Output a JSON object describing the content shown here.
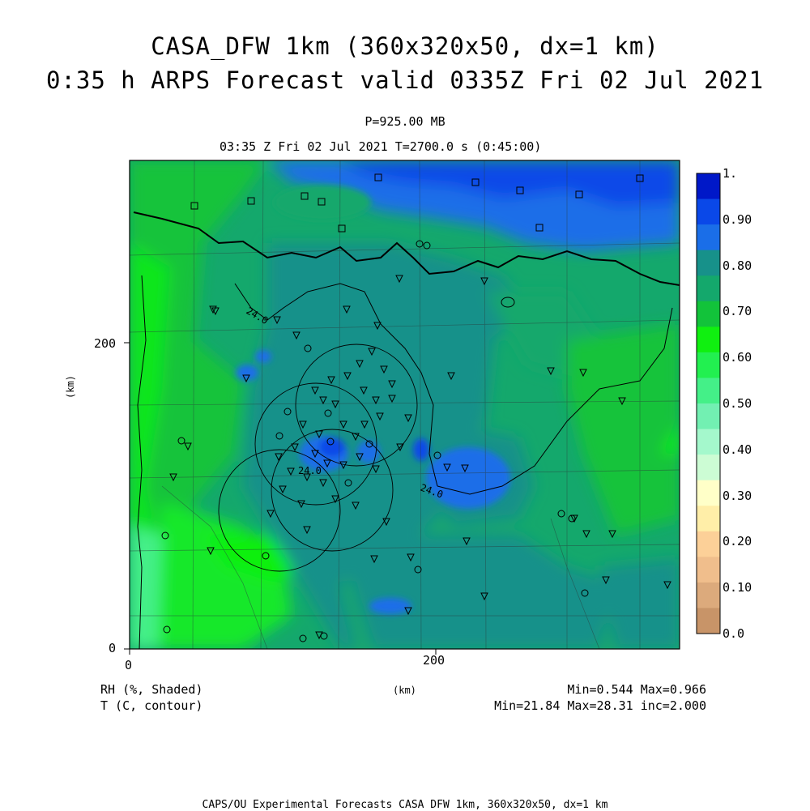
{
  "title_line1": "CASA_DFW 1km (360x320x50, dx=1 km)",
  "title_line2": "0:35 h ARPS Forecast valid 0335Z Fri 02 Jul 2021",
  "pressure_label": "P=925.00 MB",
  "time_label": "03:35 Z Fri 02 Jul 2021    T=2700.0 s (0:45:00)",
  "axis": {
    "x_ticks": [
      "0",
      "200"
    ],
    "y_ticks": [
      "0",
      "200"
    ],
    "x_unit": "(km)",
    "y_unit": "(km)"
  },
  "variables": {
    "shaded": "RH (%, Shaded)",
    "contour": "T (C, contour)"
  },
  "stats": {
    "shaded": "Min=0.544 Max=0.966",
    "contour": "Min=21.84 Max=28.31 inc=2.000"
  },
  "contour_labels": [
    "24.0",
    "24.0",
    "24.0"
  ],
  "colorbar": {
    "levels": [
      "1.",
      "0.90",
      "0.80",
      "0.70",
      "0.60",
      "0.50",
      "0.40",
      "0.30",
      "0.20",
      "0.10",
      "0.0"
    ],
    "colors": [
      "#0018c8",
      "#0a48e8",
      "#1a6ee8",
      "#17918a",
      "#14a86c",
      "#12c33a",
      "#10f010",
      "#22f050",
      "#44f088",
      "#72f0b2",
      "#a4f8cc",
      "#ccfcd4",
      "#ffffc8",
      "#ffeea8",
      "#fcd098",
      "#f0be8c",
      "#dcaa7c",
      "#c89468"
    ]
  },
  "footer": "CAPS/OU Experimental Forecasts  CASA DFW 1km, 360x320x50, dx=1 km"
}
